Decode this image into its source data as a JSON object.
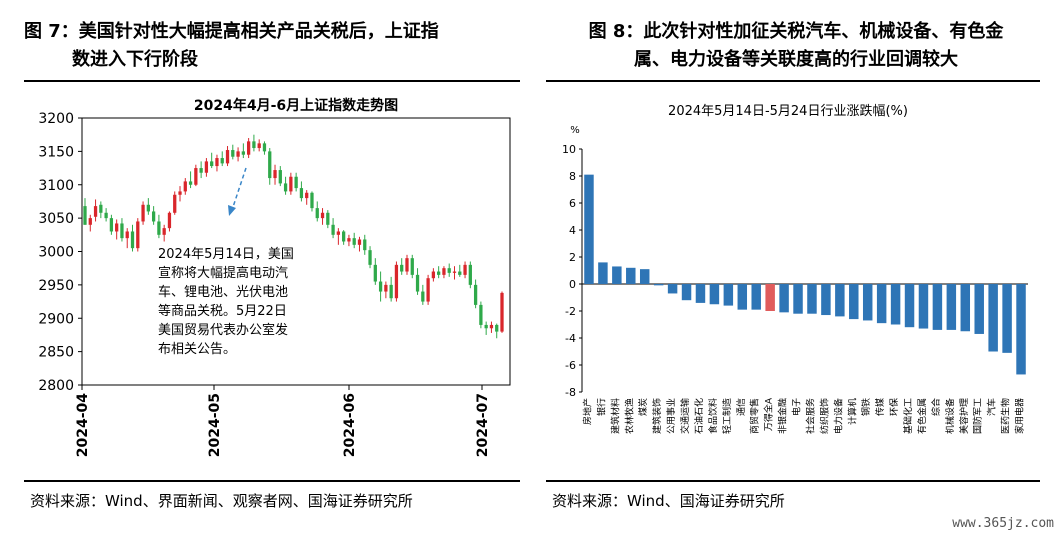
{
  "figure7": {
    "caption_line1": "图 7：美国针对性大幅提高相关产品关税后，上证指",
    "caption_line2": "数进入下行阶段",
    "source": "资料来源：Wind、界面新闻、观察者网、国海证券研究所"
  },
  "figure8": {
    "caption_line1": "图 8：此次针对性加征关税汽车、机械设备、有色金",
    "caption_line2": "属、电力设备等关联度高的行业回调较大",
    "source": "资料来源：Wind、国海证券研究所"
  },
  "watermark": "www.365jz.com",
  "chart_data": [
    {
      "type": "candlestick",
      "title": "2024年4月-6月上证指数走势图",
      "ylim": [
        2800,
        3200
      ],
      "yticks": [
        2800,
        2850,
        2900,
        2950,
        3000,
        3050,
        3100,
        3150,
        3200
      ],
      "x_ticks": [
        "2024-04",
        "2024-05",
        "2024-06",
        "2024-07"
      ],
      "up_color": "#d9262b",
      "down_color": "#2fa94a",
      "annotation": {
        "lines": [
          "2024年5月14日，美国",
          "宣称将大幅提高电动汽",
          "车、锂电池、光伏电池",
          "等商品关税。5月22日",
          "美国贸易代表办公室发",
          "布相关公告。"
        ]
      },
      "ohlc": [
        [
          3068,
          3080,
          3040,
          3040
        ],
        [
          3040,
          3055,
          3030,
          3050
        ],
        [
          3052,
          3078,
          3045,
          3068
        ],
        [
          3070,
          3075,
          3050,
          3058
        ],
        [
          3058,
          3065,
          3045,
          3050
        ],
        [
          3050,
          3055,
          3025,
          3030
        ],
        [
          3030,
          3048,
          3018,
          3042
        ],
        [
          3042,
          3050,
          3015,
          3020
        ],
        [
          3020,
          3035,
          3005,
          3030
        ],
        [
          3030,
          3040,
          3000,
          3005
        ],
        [
          3005,
          3050,
          3000,
          3045
        ],
        [
          3045,
          3075,
          3040,
          3070
        ],
        [
          3070,
          3080,
          3055,
          3060
        ],
        [
          3060,
          3068,
          3040,
          3045
        ],
        [
          3045,
          3055,
          3020,
          3025
        ],
        [
          3025,
          3040,
          3015,
          3035
        ],
        [
          3035,
          3060,
          3030,
          3058
        ],
        [
          3058,
          3090,
          3055,
          3085
        ],
        [
          3085,
          3098,
          3075,
          3090
        ],
        [
          3090,
          3110,
          3085,
          3105
        ],
        [
          3105,
          3120,
          3095,
          3100
        ],
        [
          3100,
          3130,
          3098,
          3125
        ],
        [
          3125,
          3135,
          3110,
          3118
        ],
        [
          3118,
          3140,
          3112,
          3135
        ],
        [
          3135,
          3148,
          3125,
          3128
        ],
        [
          3128,
          3145,
          3120,
          3140
        ],
        [
          3140,
          3150,
          3128,
          3132
        ],
        [
          3132,
          3158,
          3128,
          3152
        ],
        [
          3152,
          3160,
          3138,
          3142
        ],
        [
          3142,
          3156,
          3135,
          3150
        ],
        [
          3150,
          3162,
          3140,
          3145
        ],
        [
          3145,
          3170,
          3140,
          3165
        ],
        [
          3165,
          3175,
          3150,
          3155
        ],
        [
          3155,
          3168,
          3150,
          3162
        ],
        [
          3162,
          3165,
          3145,
          3150
        ],
        [
          3150,
          3155,
          3100,
          3110
        ],
        [
          3110,
          3130,
          3100,
          3122
        ],
        [
          3122,
          3128,
          3098,
          3102
        ],
        [
          3102,
          3112,
          3085,
          3090
        ],
        [
          3090,
          3118,
          3085,
          3112
        ],
        [
          3112,
          3118,
          3090,
          3095
        ],
        [
          3095,
          3105,
          3075,
          3080
        ],
        [
          3080,
          3092,
          3070,
          3088
        ],
        [
          3088,
          3090,
          3060,
          3065
        ],
        [
          3065,
          3075,
          3045,
          3050
        ],
        [
          3050,
          3065,
          3040,
          3058
        ],
        [
          3058,
          3062,
          3035,
          3040
        ],
        [
          3040,
          3050,
          3020,
          3025
        ],
        [
          3025,
          3035,
          3010,
          3030
        ],
        [
          3030,
          3032,
          3010,
          3015
        ],
        [
          3015,
          3025,
          3008,
          3020
        ],
        [
          3020,
          3028,
          3005,
          3010
        ],
        [
          3010,
          3022,
          3000,
          3018
        ],
        [
          3018,
          3025,
          2995,
          3002
        ],
        [
          3002,
          3008,
          2975,
          2980
        ],
        [
          2980,
          2990,
          2950,
          2955
        ],
        [
          2955,
          2970,
          2925,
          2940
        ],
        [
          2940,
          2955,
          2930,
          2950
        ],
        [
          2950,
          2962,
          2925,
          2930
        ],
        [
          2930,
          2985,
          2925,
          2980
        ],
        [
          2980,
          2990,
          2965,
          2970
        ],
        [
          2970,
          2995,
          2965,
          2990
        ],
        [
          2990,
          2995,
          2960,
          2965
        ],
        [
          2965,
          2975,
          2935,
          2940
        ],
        [
          2940,
          2950,
          2920,
          2925
        ],
        [
          2925,
          2965,
          2920,
          2960
        ],
        [
          2960,
          2975,
          2955,
          2970
        ],
        [
          2970,
          2978,
          2960,
          2965
        ],
        [
          2965,
          2978,
          2960,
          2975
        ],
        [
          2975,
          2982,
          2962,
          2968
        ],
        [
          2968,
          2978,
          2958,
          2970
        ],
        [
          2970,
          2980,
          2962,
          2965
        ],
        [
          2965,
          2985,
          2960,
          2980
        ],
        [
          2980,
          2985,
          2945,
          2950
        ],
        [
          2950,
          2958,
          2915,
          2920
        ],
        [
          2920,
          2925,
          2885,
          2890
        ],
        [
          2890,
          2895,
          2875,
          2885
        ],
        [
          2885,
          2895,
          2878,
          2890
        ],
        [
          2890,
          2892,
          2870,
          2880
        ],
        [
          2880,
          2940,
          2878,
          2938
        ]
      ]
    },
    {
      "type": "bar",
      "title": "2024年5月14日-5月24日行业涨跌幅(%)",
      "ylabel": "%",
      "ylim": [
        -8,
        10
      ],
      "yticks": [
        -8,
        -6,
        -4,
        -2,
        0,
        2,
        4,
        6,
        8,
        10
      ],
      "bar_color": "#2e75b6",
      "highlight_color": "#e05c5c",
      "highlight_category": "万得全A",
      "categories": [
        "房地产",
        "银行",
        "建筑材料",
        "农林牧渔",
        "煤炭",
        "建筑装饰",
        "公用事业",
        "交通运输",
        "石油石化",
        "食品饮料",
        "轻工制造",
        "通信",
        "商贸零售",
        "万得全A",
        "非银金融",
        "电子",
        "社会服务",
        "纺织服饰",
        "电力设备",
        "计算机",
        "钢铁",
        "传媒",
        "环保",
        "基础化工",
        "有色金属",
        "综合",
        "机械设备",
        "美容护理",
        "国防军工",
        "汽车",
        "医药生物",
        "家用电器"
      ],
      "values": [
        8.1,
        1.6,
        1.3,
        1.2,
        1.1,
        -0.1,
        -0.7,
        -1.2,
        -1.4,
        -1.5,
        -1.6,
        -1.9,
        -1.9,
        -2.0,
        -2.1,
        -2.2,
        -2.2,
        -2.3,
        -2.4,
        -2.6,
        -2.7,
        -2.9,
        -3.0,
        -3.2,
        -3.3,
        -3.4,
        -3.4,
        -3.5,
        -3.7,
        -5.0,
        -5.1,
        -6.7
      ]
    }
  ]
}
